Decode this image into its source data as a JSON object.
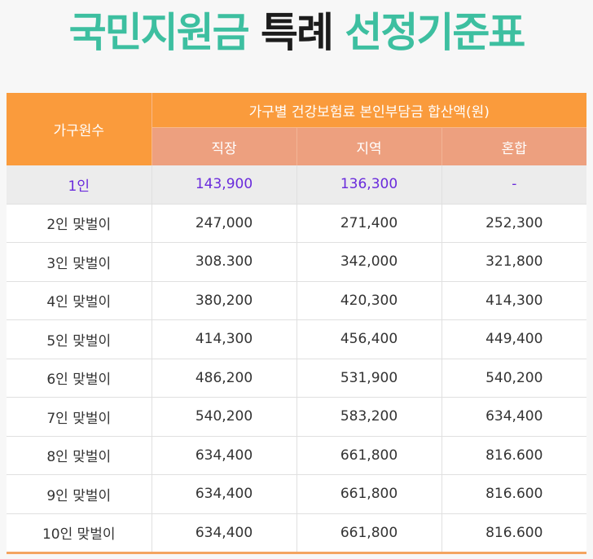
{
  "title": {
    "part1": "국민지원금",
    "part2": "특례",
    "part3": "선정기준표"
  },
  "colors": {
    "title_green": "#3dbfa0",
    "header_orange": "#fa9b3c",
    "header_salmon": "#eda07f",
    "highlight_text": "#6a2bdc"
  },
  "table": {
    "row_header": "가구원수",
    "group_header": "가구별 건강보험료 본인부담금 합산액(원)",
    "columns": [
      "직장",
      "지역",
      "혼합"
    ],
    "rows": [
      {
        "label": "1인",
        "values": [
          "143,900",
          "136,300",
          "-"
        ]
      },
      {
        "label": "2인 맞벌이",
        "values": [
          "247,000",
          "271,400",
          "252,300"
        ]
      },
      {
        "label": "3인 맞벌이",
        "values": [
          "308.300",
          "342,000",
          "321,800"
        ]
      },
      {
        "label": "4인 맞벌이",
        "values": [
          "380,200",
          "420,300",
          "414,300"
        ]
      },
      {
        "label": "5인 맞벌이",
        "values": [
          "414,300",
          "456,400",
          "449,400"
        ]
      },
      {
        "label": "6인 맞벌이",
        "values": [
          "486,200",
          "531,900",
          "540,200"
        ]
      },
      {
        "label": "7인 맞벌이",
        "values": [
          "540,200",
          "583,200",
          "634,400"
        ]
      },
      {
        "label": "8인 맞벌이",
        "values": [
          "634,400",
          "661,800",
          "816.600"
        ]
      },
      {
        "label": "9인 맞벌이",
        "values": [
          "634,400",
          "661,800",
          "816.600"
        ]
      },
      {
        "label": "10인 맞벌이",
        "values": [
          "634,400",
          "661,800",
          "816.600"
        ]
      }
    ]
  }
}
